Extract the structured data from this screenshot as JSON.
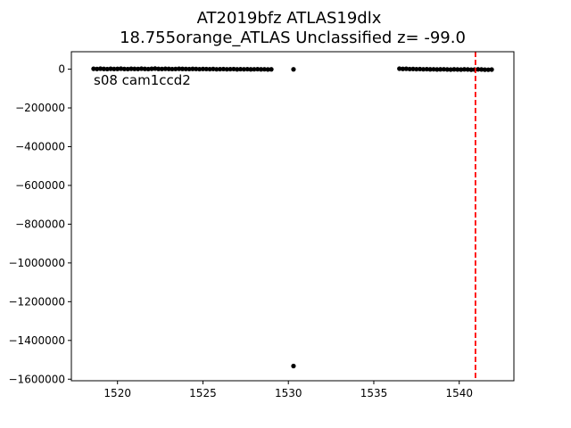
{
  "chart_data": {
    "type": "scatter",
    "title_line1": "AT2019bfz  ATLAS19dlx",
    "title_line2": "18.755orange_ATLAS Unclassified z= -99.0",
    "annotation": "s08 cam1ccd2",
    "xlabel": "",
    "ylabel": "",
    "xlim": [
      1517.3,
      1543.2
    ],
    "ylim": [
      -1608000,
      90000
    ],
    "x_ticks": [
      1520,
      1525,
      1530,
      1535,
      1540
    ],
    "x_tick_labels": [
      "1520",
      "1525",
      "1530",
      "1535",
      "1540"
    ],
    "y_ticks": [
      0,
      -200000,
      -400000,
      -600000,
      -800000,
      -1000000,
      -1200000,
      -1400000,
      -1600000
    ],
    "y_tick_labels": [
      "0",
      "−200000",
      "−400000",
      "−600000",
      "−800000",
      "−1000000",
      "−1200000",
      "−1400000",
      "−1600000"
    ],
    "grid": false,
    "marker_color": "#000000",
    "vline": {
      "x": 1540.95,
      "color": "#ff0000",
      "style": "dashed"
    },
    "series": [
      {
        "points": [
          [
            1518.6,
            2000
          ],
          [
            1518.8,
            1000
          ],
          [
            1519.0,
            2500
          ],
          [
            1519.2,
            1500
          ],
          [
            1519.4,
            500
          ],
          [
            1519.6,
            2000
          ],
          [
            1519.8,
            1000
          ],
          [
            1520.0,
            1500
          ],
          [
            1520.2,
            2500
          ],
          [
            1520.4,
            1000
          ],
          [
            1520.6,
            500
          ],
          [
            1520.8,
            2000
          ],
          [
            1521.0,
            1500
          ],
          [
            1521.2,
            1000
          ],
          [
            1521.4,
            2500
          ],
          [
            1521.6,
            1500
          ],
          [
            1521.8,
            500
          ],
          [
            1522.0,
            2000
          ],
          [
            1522.2,
            3000
          ],
          [
            1522.4,
            1500
          ],
          [
            1522.6,
            1000
          ],
          [
            1522.8,
            2000
          ],
          [
            1523.0,
            1500
          ],
          [
            1523.2,
            500
          ],
          [
            1523.4,
            1000
          ],
          [
            1523.6,
            2000
          ],
          [
            1523.8,
            1500
          ],
          [
            1524.0,
            1000
          ],
          [
            1524.2,
            500
          ],
          [
            1524.4,
            1500
          ],
          [
            1524.6,
            1000
          ],
          [
            1524.8,
            0
          ],
          [
            1525.0,
            1000
          ],
          [
            1525.2,
            500
          ],
          [
            1525.4,
            0
          ],
          [
            1525.6,
            1000
          ],
          [
            1525.8,
            -500
          ],
          [
            1526.0,
            0
          ],
          [
            1526.2,
            500
          ],
          [
            1526.4,
            -500
          ],
          [
            1526.6,
            0
          ],
          [
            1526.8,
            500
          ],
          [
            1527.0,
            -1000
          ],
          [
            1527.2,
            0
          ],
          [
            1527.4,
            -500
          ],
          [
            1527.6,
            0
          ],
          [
            1527.8,
            -1000
          ],
          [
            1528.0,
            -500
          ],
          [
            1528.2,
            0
          ],
          [
            1528.4,
            -1000
          ],
          [
            1528.6,
            -500
          ],
          [
            1528.8,
            -1500
          ],
          [
            1529.0,
            -1000
          ],
          [
            1530.3,
            -1000
          ],
          [
            1530.3,
            -1532000
          ],
          [
            1536.5,
            2500
          ],
          [
            1536.7,
            1500
          ],
          [
            1536.9,
            2000
          ],
          [
            1537.1,
            500
          ],
          [
            1537.3,
            1000
          ],
          [
            1537.5,
            0
          ],
          [
            1537.7,
            500
          ],
          [
            1537.9,
            -500
          ],
          [
            1538.1,
            0
          ],
          [
            1538.3,
            -1000
          ],
          [
            1538.5,
            -500
          ],
          [
            1538.7,
            -1500
          ],
          [
            1538.9,
            -1000
          ],
          [
            1539.1,
            -500
          ],
          [
            1539.3,
            -1500
          ],
          [
            1539.5,
            -2000
          ],
          [
            1539.7,
            -1000
          ],
          [
            1539.9,
            -1500
          ],
          [
            1540.1,
            -2000
          ],
          [
            1540.3,
            -1000
          ],
          [
            1540.5,
            -1500
          ],
          [
            1540.7,
            -2500
          ],
          [
            1540.9,
            -2000
          ],
          [
            1541.1,
            -1000
          ],
          [
            1541.3,
            -1500
          ],
          [
            1541.5,
            -2500
          ],
          [
            1541.7,
            -3000
          ],
          [
            1541.9,
            -2000
          ]
        ]
      }
    ]
  }
}
